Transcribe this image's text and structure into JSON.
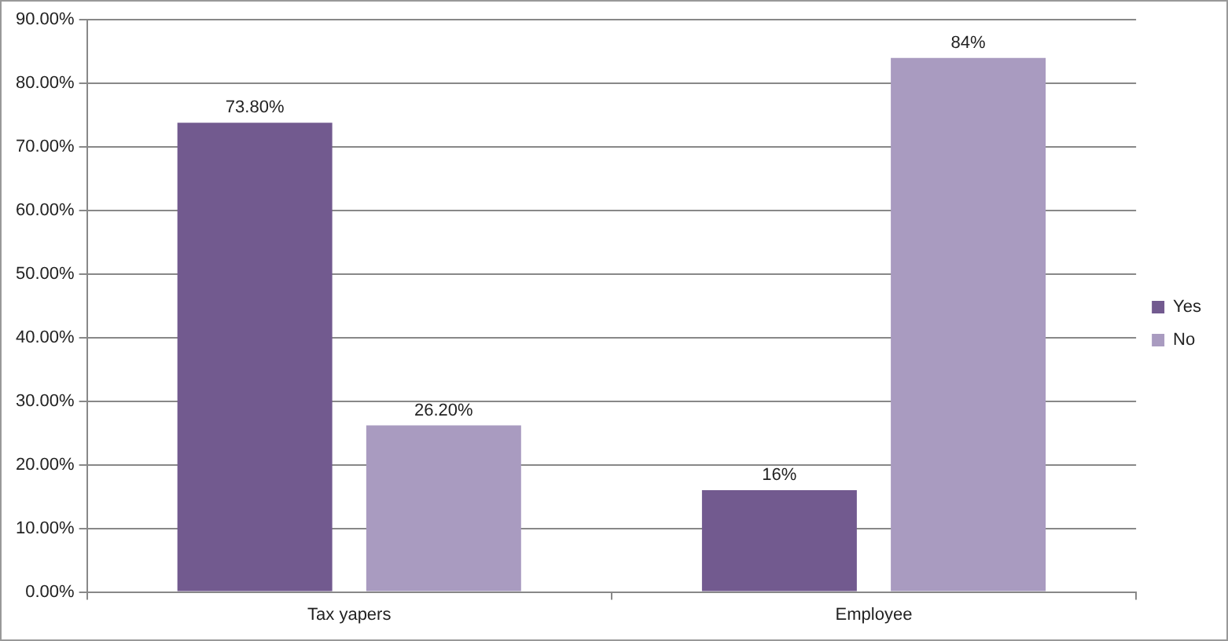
{
  "chart_data": {
    "type": "bar",
    "categories": [
      "Tax yapers",
      "Employee"
    ],
    "series": [
      {
        "name": "Yes",
        "color": "#725a8f",
        "values": [
          73.8,
          16
        ],
        "value_labels": [
          "73.80%",
          "16%"
        ]
      },
      {
        "name": "No",
        "color": "#a99bc0",
        "values": [
          26.2,
          84
        ],
        "value_labels": [
          "26.20%",
          "84%"
        ]
      }
    ],
    "ylim": [
      0,
      90
    ],
    "yticks": [
      {
        "value": 0,
        "label": "0.00%"
      },
      {
        "value": 10,
        "label": "10.00%"
      },
      {
        "value": 20,
        "label": "20.00%"
      },
      {
        "value": 30,
        "label": "30.00%"
      },
      {
        "value": 40,
        "label": "40.00%"
      },
      {
        "value": 50,
        "label": "50.00%"
      },
      {
        "value": 60,
        "label": "60.00%"
      },
      {
        "value": 70,
        "label": "70.00%"
      },
      {
        "value": 80,
        "label": "80.00%"
      },
      {
        "value": 90,
        "label": "90.00%"
      }
    ],
    "grid": "y",
    "legend": "right"
  }
}
